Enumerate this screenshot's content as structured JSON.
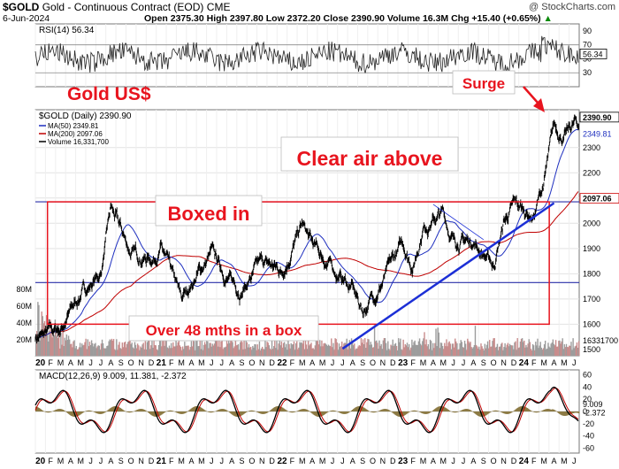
{
  "header": {
    "symbol": "$GOLD",
    "name": "Gold - Continuous Contract (EOD)",
    "exchange": "CME",
    "date": "6-Jun-2024",
    "stats_line": "Open 2375.30  High 2397.80  Low 2372.20  Close 2390.90  Volume 16.3M  Chg +15.40 (+0.65%)",
    "arrow": "▲",
    "watermark": "@ StockCharts.com"
  },
  "colors": {
    "price": "#000000",
    "ma50": "#1e2fbf",
    "ma200": "#c00000",
    "annotation": "#e8141e",
    "trendline": "#1c2fd6",
    "volume_up": "#9c9c9c",
    "volume_down": "#c88c8c",
    "macd_hist": "#8c7a45"
  },
  "chart_data": [
    {
      "type": "line",
      "panel": "rsi",
      "title": "RSI(14) 56.34",
      "indicator": "RSI",
      "period": 14,
      "last_value": 56.34,
      "ylim": [
        10,
        100
      ],
      "yticks": [
        30,
        50,
        70,
        90
      ],
      "y_ref_lines": [
        30,
        70
      ],
      "last_value_label": "56.34"
    },
    {
      "type": "line",
      "panel": "price",
      "title": "$GOLD (Daily) 2390.90",
      "legend": [
        {
          "label": "MA(50) 2349.81",
          "color": "#1e2fbf"
        },
        {
          "label": "MA(200) 2097.06",
          "color": "#c00000"
        },
        {
          "label": "Volume 16,331,700",
          "color": "#000000"
        }
      ],
      "x": [
        "2020-01",
        "2020-03",
        "2020-05",
        "2020-07",
        "2020-08",
        "2020-10",
        "2020-12",
        "2021-01",
        "2021-03",
        "2021-04",
        "2021-06",
        "2021-08",
        "2021-09",
        "2021-11",
        "2022-01",
        "2022-03",
        "2022-04",
        "2022-06",
        "2022-08",
        "2022-09",
        "2022-11",
        "2023-01",
        "2023-02",
        "2023-03",
        "2023-05",
        "2023-06",
        "2023-08",
        "2023-10",
        "2023-11",
        "2023-12",
        "2024-02",
        "2024-03",
        "2024-04",
        "2024-05",
        "2024-06"
      ],
      "close": [
        1550,
        1580,
        1720,
        1800,
        2055,
        1880,
        1860,
        1900,
        1690,
        1760,
        1880,
        1760,
        1740,
        1840,
        1810,
        1990,
        1910,
        1820,
        1740,
        1650,
        1770,
        1920,
        1830,
        1990,
        2040,
        1930,
        1930,
        1830,
        2000,
        2070,
        2030,
        2160,
        2380,
        2340,
        2390
      ],
      "ma50_last": 2349.81,
      "ma200_last": 2097.06,
      "last_close": 2390.9,
      "ylim": [
        1475,
        2450
      ],
      "yticks": [
        1500,
        1600,
        1700,
        1800,
        1900,
        2000,
        2100,
        2200,
        2300
      ],
      "box_range": [
        1600,
        2085
      ],
      "h_lines": [
        2085,
        1765
      ],
      "trendline": {
        "start": [
          "2022-07",
          1615
        ],
        "end": [
          "2024-04",
          2080
        ]
      },
      "right_labels": {
        "close": "2390.90",
        "ma50": "2349.81",
        "ma200": "2097.06",
        "volume": "16331700"
      },
      "volume_axis_ticks": [
        "20M",
        "40M",
        "60M",
        "80M"
      ]
    },
    {
      "type": "line",
      "panel": "macd",
      "title": "MACD(12,26,9) 9.009, 11.381, -2.372",
      "macd": 9.009,
      "signal": 11.381,
      "histogram": -2.372,
      "ylim": [
        -68,
        68
      ],
      "yticks": [
        -60,
        -40,
        -20,
        0,
        20,
        40,
        60
      ],
      "last_labels": {
        "macd": "9.009",
        "signal": "11.381",
        "histogram": "-2.372"
      }
    }
  ],
  "x_axis": {
    "labels": [
      "20",
      "F",
      "M",
      "A",
      "M",
      "J",
      "J",
      "A",
      "S",
      "O",
      "N",
      "D",
      "21",
      "F",
      "M",
      "A",
      "M",
      "J",
      "J",
      "A",
      "S",
      "O",
      "N",
      "D",
      "22",
      "F",
      "M",
      "A",
      "M",
      "J",
      "J",
      "A",
      "S",
      "O",
      "N",
      "D",
      "23",
      "F",
      "M",
      "A",
      "M",
      "J",
      "J",
      "A",
      "S",
      "O",
      "N",
      "D",
      "24",
      "F",
      "M",
      "A",
      "M",
      "J"
    ]
  },
  "annotations": {
    "title": "Gold US$",
    "surge": "Surge",
    "clear_air": "Clear air above",
    "boxed_in": "Boxed in",
    "over_48": "Over 48 mths in a box"
  },
  "rsi_header": {
    "label": "RSI(14)",
    "value": "56.34"
  },
  "price_header": {
    "label": "$GOLD (Daily) 2390.90"
  },
  "macd_header": {
    "label": "MACD(12,26,9)",
    "values": "9.009, 11.381, -2.372"
  }
}
